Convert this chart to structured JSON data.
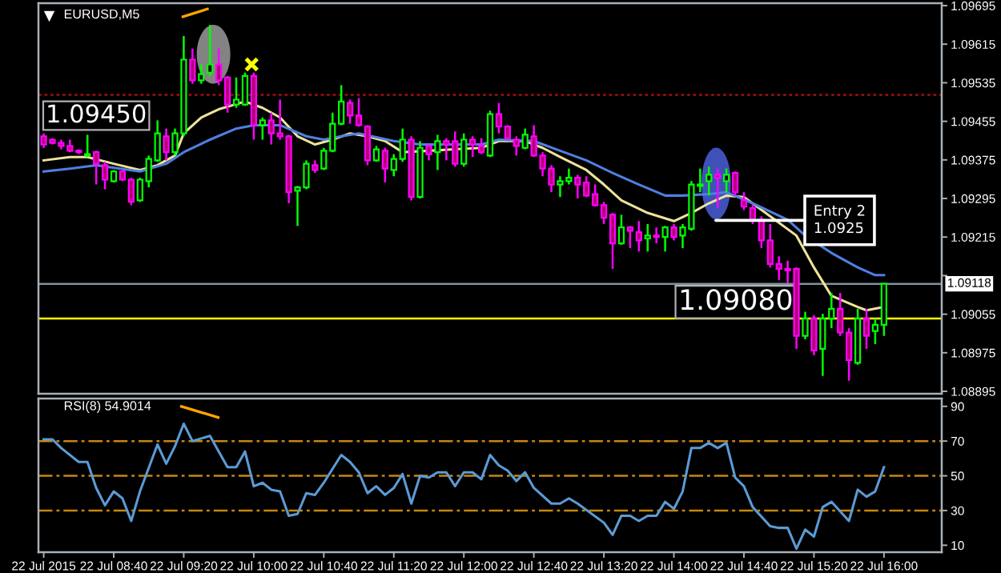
{
  "chart_data": [
    {
      "type": "candlestick",
      "title": "EURUSD,M5",
      "x": [
        "2015-07-22T08:00",
        "2015-07-22T08:05",
        "2015-07-22T08:10",
        "2015-07-22T08:15",
        "2015-07-22T08:20",
        "2015-07-22T08:25",
        "2015-07-22T08:30",
        "2015-07-22T08:35",
        "2015-07-22T08:40",
        "2015-07-22T08:45",
        "2015-07-22T08:50",
        "2015-07-22T08:55",
        "2015-07-22T09:00",
        "2015-07-22T09:05",
        "2015-07-22T09:10",
        "2015-07-22T09:15",
        "2015-07-22T09:20",
        "2015-07-22T09:25",
        "2015-07-22T09:30",
        "2015-07-22T09:35",
        "2015-07-22T09:40",
        "2015-07-22T09:45",
        "2015-07-22T09:50",
        "2015-07-22T09:55",
        "2015-07-22T10:00",
        "2015-07-22T10:05",
        "2015-07-22T10:10",
        "2015-07-22T10:15",
        "2015-07-22T10:20",
        "2015-07-22T10:25",
        "2015-07-22T10:30",
        "2015-07-22T10:35",
        "2015-07-22T10:40",
        "2015-07-22T10:45",
        "2015-07-22T10:50",
        "2015-07-22T10:55",
        "2015-07-22T11:00",
        "2015-07-22T11:05",
        "2015-07-22T11:10",
        "2015-07-22T11:15",
        "2015-07-22T11:20",
        "2015-07-22T11:25",
        "2015-07-22T11:30",
        "2015-07-22T11:35",
        "2015-07-22T11:40",
        "2015-07-22T11:45",
        "2015-07-22T11:50",
        "2015-07-22T11:55",
        "2015-07-22T12:00",
        "2015-07-22T12:05",
        "2015-07-22T12:10",
        "2015-07-22T12:15",
        "2015-07-22T12:20",
        "2015-07-22T12:25",
        "2015-07-22T12:30",
        "2015-07-22T12:35",
        "2015-07-22T12:40",
        "2015-07-22T12:45",
        "2015-07-22T12:50",
        "2015-07-22T12:55",
        "2015-07-22T13:00",
        "2015-07-22T13:05",
        "2015-07-22T13:10",
        "2015-07-22T13:15",
        "2015-07-22T13:20",
        "2015-07-22T13:25",
        "2015-07-22T13:30",
        "2015-07-22T13:35",
        "2015-07-22T13:40",
        "2015-07-22T13:45",
        "2015-07-22T13:50",
        "2015-07-22T13:55",
        "2015-07-22T14:00",
        "2015-07-22T14:05",
        "2015-07-22T14:10",
        "2015-07-22T14:15",
        "2015-07-22T14:20",
        "2015-07-22T14:25",
        "2015-07-22T14:30",
        "2015-07-22T14:35",
        "2015-07-22T14:40",
        "2015-07-22T14:45",
        "2015-07-22T14:50",
        "2015-07-22T14:55",
        "2015-07-22T15:00",
        "2015-07-22T15:05",
        "2015-07-22T15:10",
        "2015-07-22T15:15",
        "2015-07-22T15:20",
        "2015-07-22T15:25",
        "2015-07-22T15:30",
        "2015-07-22T15:35",
        "2015-07-22T15:40",
        "2015-07-22T15:45",
        "2015-07-22T15:50",
        "2015-07-22T15:55",
        "2015-07-22T16:00"
      ],
      "ohlc": [
        [
          1.09424,
          1.0943,
          1.094,
          1.09407
        ],
        [
          1.09417,
          1.0942,
          1.09407,
          1.0941
        ],
        [
          1.0941,
          1.09417,
          1.09397,
          1.09404
        ],
        [
          1.09404,
          1.09417,
          1.09391,
          1.09394
        ],
        [
          1.09394,
          1.09397,
          1.09387,
          1.09391
        ],
        [
          1.09384,
          1.09427,
          1.09381,
          1.09387
        ],
        [
          1.09391,
          1.09394,
          1.09324,
          1.09367
        ],
        [
          1.09364,
          1.09371,
          1.09314,
          1.09334
        ],
        [
          1.09331,
          1.09354,
          1.09328,
          1.09351
        ],
        [
          1.09351,
          1.09354,
          1.09331,
          1.09334
        ],
        [
          1.09334,
          1.09338,
          1.09281,
          1.09288
        ],
        [
          1.09291,
          1.09338,
          1.09288,
          1.09334
        ],
        [
          1.09331,
          1.09384,
          1.09318,
          1.09377
        ],
        [
          1.09374,
          1.09457,
          1.09371,
          1.0943
        ],
        [
          1.09424,
          1.0944,
          1.09374,
          1.09391
        ],
        [
          1.09391,
          1.0944,
          1.09384,
          1.0943
        ],
        [
          1.0943,
          1.09632,
          1.09424,
          1.09583
        ],
        [
          1.09583,
          1.09606,
          1.09533,
          1.0954
        ],
        [
          1.0954,
          1.09573,
          1.09533,
          1.09553
        ],
        [
          1.09556,
          1.09655,
          1.09549,
          1.09573
        ],
        [
          1.09573,
          1.09606,
          1.0953,
          1.0954
        ],
        [
          1.09546,
          1.09549,
          1.09473,
          1.0949
        ],
        [
          1.0949,
          1.09546,
          1.09483,
          1.095
        ],
        [
          1.0949,
          1.09556,
          1.09487,
          1.09549
        ],
        [
          1.09549,
          1.09556,
          1.09417,
          1.09447
        ],
        [
          1.09447,
          1.09463,
          1.09417,
          1.09457
        ],
        [
          1.09457,
          1.09473,
          1.09407,
          1.0943
        ],
        [
          1.0943,
          1.095,
          1.09417,
          1.09424
        ],
        [
          1.09424,
          1.09427,
          1.09285,
          1.09308
        ],
        [
          1.09311,
          1.09321,
          1.09238,
          1.09318
        ],
        [
          1.09318,
          1.09374,
          1.09314,
          1.09367
        ],
        [
          1.09364,
          1.09374,
          1.09348,
          1.09354
        ],
        [
          1.09357,
          1.094,
          1.09354,
          1.09394
        ],
        [
          1.09394,
          1.09473,
          1.09391,
          1.0945
        ],
        [
          1.0945,
          1.0953,
          1.09447,
          1.09496
        ],
        [
          1.09493,
          1.095,
          1.0945,
          1.09467
        ],
        [
          1.09467,
          1.09503,
          1.09444,
          1.09447
        ],
        [
          1.09444,
          1.09447,
          1.09364,
          1.09374
        ],
        [
          1.09374,
          1.09404,
          1.09371,
          1.09397
        ],
        [
          1.09394,
          1.094,
          1.09328,
          1.09357
        ],
        [
          1.09354,
          1.09387,
          1.09341,
          1.09377
        ],
        [
          1.09377,
          1.0944,
          1.09371,
          1.09417
        ],
        [
          1.09417,
          1.09424,
          1.09291,
          1.09298
        ],
        [
          1.09298,
          1.09414,
          1.09295,
          1.094
        ],
        [
          1.09404,
          1.09407,
          1.09374,
          1.09387
        ],
        [
          1.09391,
          1.09427,
          1.09354,
          1.09414
        ],
        [
          1.09414,
          1.0942,
          1.09374,
          1.09407
        ],
        [
          1.09414,
          1.09434,
          1.09361,
          1.09367
        ],
        [
          1.09367,
          1.0943,
          1.09361,
          1.09417
        ],
        [
          1.09417,
          1.09424,
          1.09381,
          1.09407
        ],
        [
          1.09404,
          1.0942,
          1.09387,
          1.09391
        ],
        [
          1.09384,
          1.09477,
          1.09381,
          1.0947
        ],
        [
          1.0947,
          1.09493,
          1.0943,
          1.09444
        ],
        [
          1.09444,
          1.09447,
          1.09417,
          1.0942
        ],
        [
          1.09417,
          1.09424,
          1.09384,
          1.09404
        ],
        [
          1.094,
          1.0944,
          1.09397,
          1.09427
        ],
        [
          1.09424,
          1.09447,
          1.09381,
          1.09384
        ],
        [
          1.09384,
          1.09391,
          1.09341,
          1.09357
        ],
        [
          1.09357,
          1.09364,
          1.09308,
          1.09324
        ],
        [
          1.09324,
          1.09341,
          1.09298,
          1.09331
        ],
        [
          1.09331,
          1.09357,
          1.09324,
          1.09338
        ],
        [
          1.09338,
          1.09344,
          1.09295,
          1.09324
        ],
        [
          1.09328,
          1.09341,
          1.09298,
          1.09301
        ],
        [
          1.09304,
          1.09324,
          1.09278,
          1.09281
        ],
        [
          1.09281,
          1.09288,
          1.09242,
          1.09255
        ],
        [
          1.09261,
          1.09265,
          1.09149,
          1.09202
        ],
        [
          1.09202,
          1.09261,
          1.09199,
          1.09235
        ],
        [
          1.09235,
          1.09238,
          1.09192,
          1.09228
        ],
        [
          1.09225,
          1.09248,
          1.09185,
          1.09208
        ],
        [
          1.09212,
          1.09242,
          1.09185,
          1.09218
        ],
        [
          1.09218,
          1.09235,
          1.09202,
          1.09215
        ],
        [
          1.09215,
          1.09238,
          1.09185,
          1.09235
        ],
        [
          1.09235,
          1.09242,
          1.09208,
          1.09215
        ],
        [
          1.09218,
          1.09242,
          1.09192,
          1.09235
        ],
        [
          1.09232,
          1.09331,
          1.09228,
          1.09324
        ],
        [
          1.09321,
          1.09357,
          1.09308,
          1.09324
        ],
        [
          1.09331,
          1.09361,
          1.09301,
          1.09344
        ],
        [
          1.09344,
          1.09357,
          1.09275,
          1.09338
        ],
        [
          1.09331,
          1.09357,
          1.09308,
          1.09344
        ],
        [
          1.09348,
          1.09351,
          1.09301,
          1.09308
        ],
        [
          1.09291,
          1.09308,
          1.09271,
          1.09278
        ],
        [
          1.09275,
          1.09281,
          1.09242,
          1.09251
        ],
        [
          1.09251,
          1.09258,
          1.09192,
          1.09208
        ],
        [
          1.09208,
          1.09242,
          1.09152,
          1.09159
        ],
        [
          1.09159,
          1.09175,
          1.09126,
          1.09149
        ],
        [
          1.09149,
          1.09166,
          1.09119,
          1.09146
        ],
        [
          1.09149,
          1.09152,
          1.08983,
          1.0901
        ],
        [
          1.0901,
          1.0906,
          1.09003,
          1.09046
        ],
        [
          1.09046,
          1.09053,
          1.0897,
          1.0898
        ],
        [
          1.08983,
          1.09056,
          1.08927,
          1.09046
        ],
        [
          1.09046,
          1.09099,
          1.09026,
          1.09066
        ],
        [
          1.09066,
          1.09099,
          1.0901,
          1.09017
        ],
        [
          1.09017,
          1.09026,
          1.08917,
          1.0896
        ],
        [
          1.08954,
          1.09066,
          1.0895,
          1.09046
        ],
        [
          1.09046,
          1.09066,
          1.08983,
          1.0901
        ],
        [
          1.0902,
          1.09046,
          1.08993,
          1.09033
        ],
        [
          1.09033,
          1.09119,
          1.0901,
          1.09118
        ]
      ],
      "series": [
        {
          "type": "line",
          "color": "#eee29a",
          "x": [
            "2015-07-22T08:00",
            "2015-07-22T08:15",
            "2015-07-22T08:25",
            "2015-07-22T08:40",
            "2015-07-22T08:55",
            "2015-07-22T09:05",
            "2015-07-22T09:15",
            "2015-07-22T09:20",
            "2015-07-22T09:30",
            "2015-07-22T09:40",
            "2015-07-22T09:55",
            "2015-07-22T10:05",
            "2015-07-22T10:15",
            "2015-07-22T10:25",
            "2015-07-22T10:35",
            "2015-07-22T10:45",
            "2015-07-22T10:55",
            "2015-07-22T11:05",
            "2015-07-22T11:15",
            "2015-07-22T11:25",
            "2015-07-22T11:40",
            "2015-07-22T11:55",
            "2015-07-22T12:10",
            "2015-07-22T12:20",
            "2015-07-22T12:35",
            "2015-07-22T12:45",
            "2015-07-22T12:55",
            "2015-07-22T13:10",
            "2015-07-22T13:20",
            "2015-07-22T13:30",
            "2015-07-22T13:45",
            "2015-07-22T14:00",
            "2015-07-22T14:10",
            "2015-07-22T14:20",
            "2015-07-22T14:30",
            "2015-07-22T14:40",
            "2015-07-22T14:55",
            "2015-07-22T15:10",
            "2015-07-22T15:20",
            "2015-07-22T15:30",
            "2015-07-22T15:45",
            "2015-07-22T15:50",
            "2015-07-22T16:00"
          ],
          "values": [
            1.09374,
            1.09381,
            1.09381,
            1.09367,
            1.09354,
            1.09364,
            1.09384,
            1.0943,
            1.09463,
            1.0948,
            1.09496,
            1.09483,
            1.09463,
            1.09424,
            1.09407,
            1.09417,
            1.0943,
            1.09424,
            1.09414,
            1.09391,
            1.09394,
            1.09397,
            1.094,
            1.09414,
            1.09414,
            1.094,
            1.09381,
            1.09354,
            1.09324,
            1.09291,
            1.09265,
            1.09248,
            1.09265,
            1.09285,
            1.09301,
            1.09298,
            1.09258,
            1.09218,
            1.09152,
            1.09093,
            1.0907,
            1.09063,
            1.0907
          ]
        },
        {
          "type": "line",
          "color": "#4f7fe0",
          "x": [
            "2015-07-22T08:00",
            "2015-07-22T08:15",
            "2015-07-22T08:30",
            "2015-07-22T08:55",
            "2015-07-22T09:10",
            "2015-07-22T09:20",
            "2015-07-22T09:35",
            "2015-07-22T09:50",
            "2015-07-22T10:00",
            "2015-07-22T10:15",
            "2015-07-22T10:30",
            "2015-07-22T10:40",
            "2015-07-22T10:50",
            "2015-07-22T11:00",
            "2015-07-22T11:20",
            "2015-07-22T11:35",
            "2015-07-22T11:50",
            "2015-07-22T12:10",
            "2015-07-22T12:20",
            "2015-07-22T12:40",
            "2015-07-22T12:55",
            "2015-07-22T13:10",
            "2015-07-22T13:25",
            "2015-07-22T13:40",
            "2015-07-22T13:55",
            "2015-07-22T14:05",
            "2015-07-22T14:20",
            "2015-07-22T14:30",
            "2015-07-22T14:45",
            "2015-07-22T15:05",
            "2015-07-22T15:15",
            "2015-07-22T15:30",
            "2015-07-22T15:45",
            "2015-07-22T15:55",
            "2015-07-22T16:00"
          ],
          "values": [
            1.09351,
            1.09357,
            1.09364,
            1.09351,
            1.09367,
            1.09391,
            1.09417,
            1.0944,
            1.09447,
            1.09447,
            1.09424,
            1.09417,
            1.09424,
            1.0943,
            1.09414,
            1.09407,
            1.09407,
            1.09407,
            1.09417,
            1.09414,
            1.09394,
            1.09374,
            1.09348,
            1.09324,
            1.09301,
            1.09301,
            1.09304,
            1.09308,
            1.09285,
            1.09251,
            1.09218,
            1.09182,
            1.09152,
            1.09136,
            1.09136
          ]
        }
      ],
      "xlim": [
        "2015-07-22T07:57",
        "2015-07-22T16:33"
      ],
      "ylim": [
        1.0889,
        1.097
      ],
      "yticks": [
        1.09695,
        1.09615,
        1.09535,
        1.09455,
        1.09375,
        1.09295,
        1.09215,
        {
          "value": 1.09135,
          "label": null
        },
        1.09055,
        1.08975,
        1.08895
      ],
      "tick_labels": "y",
      "ref_lines": [
        {
          "axis": "y",
          "value": 1.0951,
          "color": "#a01010",
          "line_style": "dotted"
        },
        {
          "axis": "y",
          "value": 1.09118,
          "label": "1.09118",
          "color": "#8090a0"
        },
        {
          "axis": "y",
          "value": 1.09046,
          "color": "#ffff00"
        }
      ],
      "annotations": [
        "1.09450",
        "1.09080",
        "Entry 2\n1.0925"
      ]
    },
    {
      "type": "line",
      "title": "RSI(8) 54.9014",
      "series": [
        {
          "color": "#5b9bd5",
          "x": [
            "2015-07-22T08:00",
            "2015-07-22T08:05",
            "2015-07-22T08:10",
            "2015-07-22T08:20",
            "2015-07-22T08:25",
            "2015-07-22T08:30",
            "2015-07-22T08:35",
            "2015-07-22T08:40",
            "2015-07-22T08:45",
            "2015-07-22T08:50",
            "2015-07-22T08:55",
            "2015-07-22T09:05",
            "2015-07-22T09:10",
            "2015-07-22T09:15",
            "2015-07-22T09:20",
            "2015-07-22T09:25",
            "2015-07-22T09:35",
            "2015-07-22T09:40",
            "2015-07-22T09:45",
            "2015-07-22T09:50",
            "2015-07-22T09:55",
            "2015-07-22T10:00",
            "2015-07-22T10:05",
            "2015-07-22T10:10",
            "2015-07-22T10:15",
            "2015-07-22T10:20",
            "2015-07-22T10:25",
            "2015-07-22T10:30",
            "2015-07-22T10:35",
            "2015-07-22T10:40",
            "2015-07-22T10:50",
            "2015-07-22T10:55",
            "2015-07-22T11:00",
            "2015-07-22T11:05",
            "2015-07-22T11:10",
            "2015-07-22T11:15",
            "2015-07-22T11:20",
            "2015-07-22T11:25",
            "2015-07-22T11:30",
            "2015-07-22T11:35",
            "2015-07-22T11:40",
            "2015-07-22T11:45",
            "2015-07-22T11:50",
            "2015-07-22T11:55",
            "2015-07-22T12:00",
            "2015-07-22T12:05",
            "2015-07-22T12:10",
            "2015-07-22T12:15",
            "2015-07-22T12:20",
            "2015-07-22T12:25",
            "2015-07-22T12:30",
            "2015-07-22T12:35",
            "2015-07-22T12:40",
            "2015-07-22T12:50",
            "2015-07-22T12:55",
            "2015-07-22T13:00",
            "2015-07-22T13:05",
            "2015-07-22T13:20",
            "2015-07-22T13:25",
            "2015-07-22T13:30",
            "2015-07-22T13:35",
            "2015-07-22T13:40",
            "2015-07-22T13:45",
            "2015-07-22T13:50",
            "2015-07-22T13:55",
            "2015-07-22T14:00",
            "2015-07-22T14:05",
            "2015-07-22T14:10",
            "2015-07-22T14:15",
            "2015-07-22T14:20",
            "2015-07-22T14:25",
            "2015-07-22T14:30",
            "2015-07-22T14:35",
            "2015-07-22T14:40",
            "2015-07-22T14:45",
            "2015-07-22T14:55",
            "2015-07-22T15:00",
            "2015-07-22T15:05",
            "2015-07-22T15:10",
            "2015-07-22T15:15",
            "2015-07-22T15:20",
            "2015-07-22T15:25",
            "2015-07-22T15:30",
            "2015-07-22T15:40",
            "2015-07-22T15:45",
            "2015-07-22T15:50",
            "2015-07-22T15:55",
            "2015-07-22T16:00"
          ],
          "values": [
            71,
            71,
            66,
            58,
            58,
            43,
            33,
            41,
            37,
            24,
            41,
            68,
            57,
            67,
            80,
            70,
            73,
            64,
            55,
            55,
            64,
            44,
            46,
            42,
            41,
            27,
            28,
            40,
            39,
            46,
            62,
            58,
            52,
            40,
            44,
            39,
            43,
            51,
            34,
            50,
            49,
            52,
            52,
            44,
            52,
            52,
            48,
            62,
            56,
            53,
            47,
            52,
            43,
            34,
            34,
            37,
            34,
            23,
            16,
            27,
            27,
            24,
            27,
            27,
            35,
            31,
            41,
            66,
            66,
            69,
            66,
            69,
            49,
            44,
            32,
            21,
            20,
            20,
            8,
            19,
            15,
            32,
            35,
            24,
            42,
            38,
            41,
            55
          ]
        }
      ],
      "xlim": [
        "2015-07-22T07:57",
        "2015-07-22T16:33"
      ],
      "xticks": [
        {
          "value": "2015-07-22T08:00",
          "label": "22 Jul 2015"
        },
        {
          "value": "2015-07-22T08:40",
          "label": "22 Jul 08:40"
        },
        {
          "value": "2015-07-22T09:20",
          "label": "22 Jul 09:20"
        },
        {
          "value": "2015-07-22T10:00",
          "label": "22 Jul 10:00"
        },
        {
          "value": "2015-07-22T10:40",
          "label": "22 Jul 10:40"
        },
        {
          "value": "2015-07-22T11:20",
          "label": "22 Jul 11:20"
        },
        {
          "value": "2015-07-22T12:00",
          "label": "22 Jul 12:00"
        },
        {
          "value": "2015-07-22T12:40",
          "label": "22 Jul 12:40"
        },
        {
          "value": "2015-07-22T13:20",
          "label": "22 Jul 13:20"
        },
        {
          "value": "2015-07-22T14:00",
          "label": "22 Jul 14:00"
        },
        {
          "value": "2015-07-22T14:40",
          "label": "22 Jul 14:40"
        },
        {
          "value": "2015-07-22T15:20",
          "label": "22 Jul 15:20"
        },
        {
          "value": "2015-07-22T16:00",
          "label": "22 Jul 16:00"
        }
      ],
      "ylim": [
        6,
        94.5
      ],
      "yticks": [
        10,
        30,
        50,
        70,
        90
      ],
      "ref_lines": [
        {
          "axis": "y",
          "value": 70,
          "color": "#c8860a",
          "line_style": "dashed"
        },
        {
          "axis": "y",
          "value": 50,
          "color": "#c8860a",
          "line_style": "dashed"
        },
        {
          "axis": "y",
          "value": 30,
          "color": "#c8860a",
          "line_style": "dashed"
        }
      ]
    }
  ]
}
